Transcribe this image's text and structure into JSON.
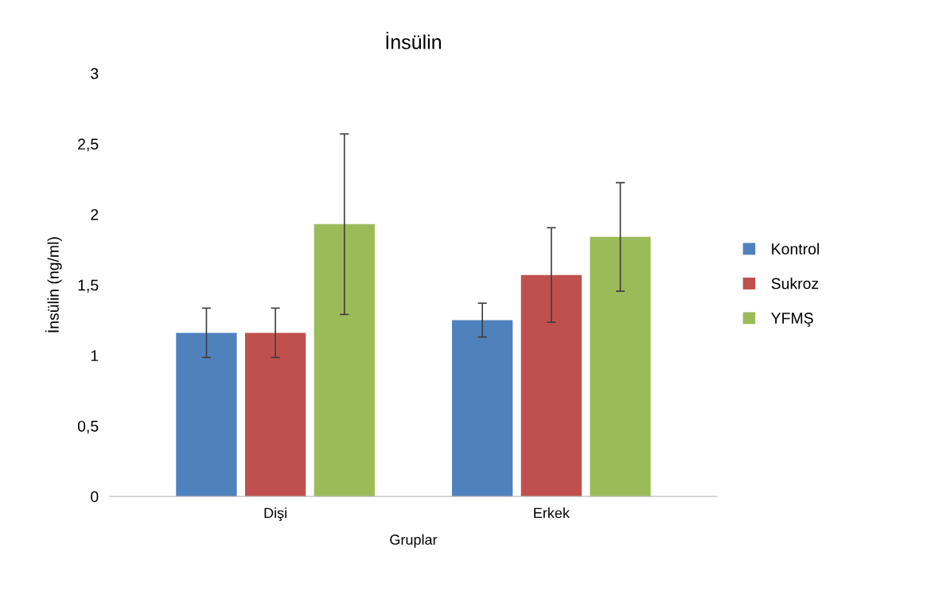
{
  "chart_data": {
    "type": "bar",
    "title": "İnsülin",
    "xlabel": "Gruplar",
    "ylabel": "İnsülin (ng/ml)",
    "categories": [
      "Dişi",
      "Erkek"
    ],
    "series": [
      {
        "name": "Kontrol",
        "color": "#4f81bd",
        "values": [
          1.16,
          1.25
        ],
        "errors": [
          0.175,
          0.12
        ]
      },
      {
        "name": "Sukroz",
        "color": "#c0504d",
        "values": [
          1.16,
          1.57
        ],
        "errors": [
          0.175,
          0.335
        ]
      },
      {
        "name": "YFMŞ",
        "color": "#9bbb59",
        "values": [
          1.93,
          1.84
        ],
        "errors": [
          0.64,
          0.385
        ]
      }
    ],
    "ylim": [
      0,
      3
    ],
    "yticks": [
      0,
      {
        "value": 0.5,
        "label": "0,5"
      },
      1,
      {
        "value": 1.5,
        "label": "1,5"
      },
      2,
      {
        "value": 2.5,
        "label": "2,5"
      },
      3
    ],
    "legend": "right",
    "grid": false
  }
}
